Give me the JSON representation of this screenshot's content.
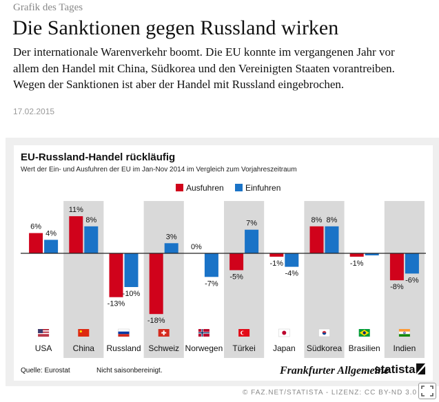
{
  "article": {
    "kicker": "Grafik des Tages",
    "headline": "Die Sanktionen gegen Russland wirken",
    "teaser": "Der internationale Warenverkehr boomt. Die EU konnte im vergangenen Jahr vor allem den Handel mit China, Südkorea und den Vereinigten Staaten vorantreiben. Wegen der Sanktionen ist aber der Handel mit Russland eingebrochen.",
    "date": "17.02.2015"
  },
  "chart_data": {
    "type": "bar",
    "title": "EU-Russland-Handel rückläufig",
    "subtitle": "Wert der Ein- und Ausfuhren der EU im Jan-Nov 2014 im Vergleich zum Vorjahreszeitraum",
    "categories": [
      "USA",
      "China",
      "Russland",
      "Schweiz",
      "Norwegen",
      "Türkei",
      "Japan",
      "Südkorea",
      "Brasilien",
      "Indien"
    ],
    "series": [
      {
        "name": "Ausfuhren",
        "color": "#d0021b",
        "values": [
          6,
          11,
          -13,
          -18,
          0,
          -5,
          -1,
          8,
          -1,
          -8
        ],
        "labels": [
          "6%",
          "11%",
          "-13%",
          "-18%",
          "0%",
          "-5%",
          "-1%",
          "8%",
          "-1%",
          "-8%"
        ]
      },
      {
        "name": "Einfuhren",
        "color": "#1a73c7",
        "values": [
          4,
          8,
          -10,
          3,
          -7,
          7,
          -4,
          8,
          null,
          -6
        ],
        "labels": [
          "4%",
          "8%",
          "-10%",
          "3%",
          "-7%",
          "7%",
          "-4%",
          "8%",
          "",
          "-6%"
        ]
      }
    ],
    "flags": [
      "us-flag-icon",
      "china-flag-icon",
      "russia-flag-icon",
      "switzerland-flag-icon",
      "norway-flag-icon",
      "turkey-flag-icon",
      "japan-flag-icon",
      "south-korea-flag-icon",
      "brazil-flag-icon",
      "india-flag-icon"
    ],
    "legend_position": "top-center",
    "source": "Quelle: Eurostat",
    "note": "Nicht saisonbereinigt.",
    "logo_faz": "Frankfurter Allgemeine",
    "logo_statista": "statista"
  },
  "footer": {
    "credit": "© FAZ.NET/STATISTA - LIZENZ: CC BY-ND 3.0"
  },
  "colors": {
    "background_panel": "#efefef",
    "shade_band": "#d9d9d9"
  }
}
